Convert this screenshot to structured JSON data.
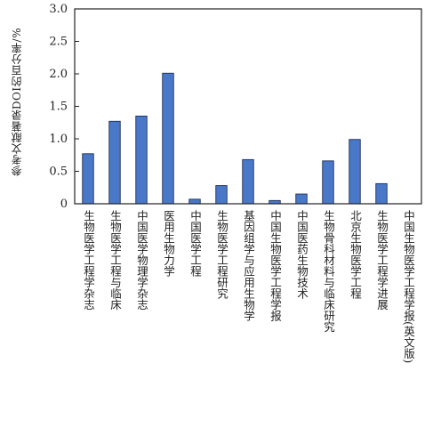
{
  "chart_data": {
    "type": "bar",
    "title": "",
    "xlabel": "",
    "ylabel": "参考文献著录DOI的百分率/%",
    "ylim": [
      0,
      3.0
    ],
    "yticks": [
      "0",
      "0.5",
      "1.0",
      "1.5",
      "2.0",
      "2.5",
      "3.0"
    ],
    "grid": false,
    "bar_color": "#4a78c9",
    "categories": [
      "生物医学工程学杂志",
      "生物医学工程与临床",
      "中国医学物理学杂志",
      "医用生物力学",
      "中国医学工程",
      "生物医学工程研究",
      "基因组学与应用生物学",
      "中国生物医学工程学报",
      "中国医药生物技术",
      "生物骨科材料与临床研究",
      "北京生物医学工程",
      "生物医学工程学进展",
      "中国生物医学工程学报(英文版)"
    ],
    "values": [
      0.77,
      1.27,
      1.35,
      2.01,
      0.07,
      0.28,
      0.68,
      0.05,
      0.15,
      0.66,
      0.99,
      0.31,
      0
    ]
  }
}
